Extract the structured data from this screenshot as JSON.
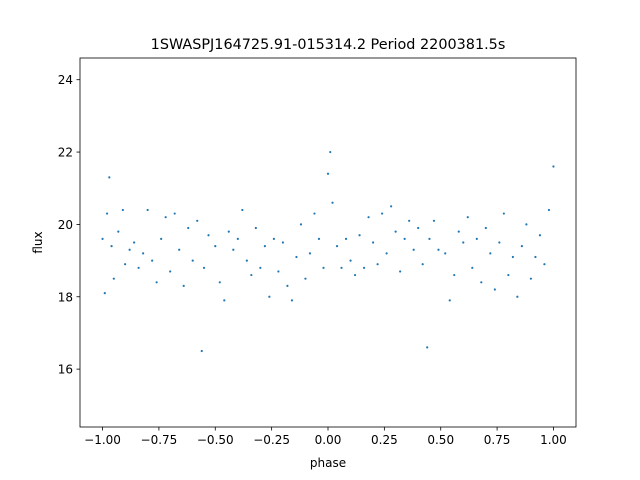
{
  "chart_data": {
    "type": "scatter",
    "title": "1SWASPJ164725.91-015314.2 Period 2200381.5s",
    "xlabel": "phase",
    "ylabel": "flux",
    "xlim": [
      -1.1,
      1.1
    ],
    "ylim": [
      14.4,
      24.6
    ],
    "x_ticks": [
      -1.0,
      -0.75,
      -0.5,
      -0.25,
      0.0,
      0.25,
      0.5,
      0.75,
      1.0
    ],
    "x_tick_labels": [
      "−1.00",
      "−0.75",
      "−0.50",
      "−0.25",
      "0.00",
      "0.25",
      "0.50",
      "0.75",
      "1.00"
    ],
    "y_ticks": [
      16,
      18,
      20,
      22,
      24
    ],
    "y_tick_labels": [
      "16",
      "18",
      "20",
      "22",
      "24"
    ],
    "grid": false,
    "legend": "none",
    "marker_color": "#1f77b4",
    "series": [
      {
        "points": [
          [
            -1.0,
            19.6
          ],
          [
            -0.99,
            18.1
          ],
          [
            -0.98,
            20.3
          ],
          [
            -0.97,
            21.3
          ],
          [
            -0.96,
            19.4
          ],
          [
            -0.95,
            18.5
          ],
          [
            -0.93,
            19.8
          ],
          [
            -0.91,
            20.4
          ],
          [
            -0.9,
            18.9
          ],
          [
            -0.88,
            19.3
          ],
          [
            -0.86,
            19.5
          ],
          [
            -0.84,
            18.8
          ],
          [
            -0.82,
            19.2
          ],
          [
            -0.8,
            20.4
          ],
          [
            -0.78,
            19.0
          ],
          [
            -0.76,
            18.4
          ],
          [
            -0.74,
            19.6
          ],
          [
            -0.72,
            20.2
          ],
          [
            -0.7,
            18.7
          ],
          [
            -0.68,
            20.3
          ],
          [
            -0.66,
            19.3
          ],
          [
            -0.64,
            18.3
          ],
          [
            -0.62,
            19.9
          ],
          [
            -0.6,
            19.0
          ],
          [
            -0.58,
            20.1
          ],
          [
            -0.56,
            16.5
          ],
          [
            -0.55,
            18.8
          ],
          [
            -0.53,
            19.7
          ],
          [
            -0.5,
            19.4
          ],
          [
            -0.48,
            18.4
          ],
          [
            -0.46,
            17.9
          ],
          [
            -0.44,
            19.8
          ],
          [
            -0.42,
            19.3
          ],
          [
            -0.4,
            19.6
          ],
          [
            -0.38,
            20.4
          ],
          [
            -0.36,
            19.0
          ],
          [
            -0.34,
            18.6
          ],
          [
            -0.32,
            19.9
          ],
          [
            -0.3,
            18.8
          ],
          [
            -0.28,
            19.4
          ],
          [
            -0.26,
            18.0
          ],
          [
            -0.24,
            19.6
          ],
          [
            -0.22,
            18.7
          ],
          [
            -0.2,
            19.5
          ],
          [
            -0.18,
            18.3
          ],
          [
            -0.16,
            17.9
          ],
          [
            -0.14,
            19.1
          ],
          [
            -0.12,
            20.0
          ],
          [
            -0.1,
            18.5
          ],
          [
            -0.08,
            19.2
          ],
          [
            -0.06,
            20.3
          ],
          [
            -0.04,
            19.6
          ],
          [
            -0.02,
            18.8
          ],
          [
            0.0,
            21.4
          ],
          [
            0.01,
            22.0
          ],
          [
            0.02,
            20.6
          ],
          [
            0.04,
            19.4
          ],
          [
            0.06,
            18.8
          ],
          [
            0.08,
            19.6
          ],
          [
            0.1,
            19.0
          ],
          [
            0.12,
            18.6
          ],
          [
            0.14,
            19.7
          ],
          [
            0.16,
            18.8
          ],
          [
            0.18,
            20.2
          ],
          [
            0.2,
            19.5
          ],
          [
            0.22,
            18.9
          ],
          [
            0.24,
            20.3
          ],
          [
            0.26,
            19.2
          ],
          [
            0.28,
            20.5
          ],
          [
            0.3,
            19.8
          ],
          [
            0.32,
            18.7
          ],
          [
            0.34,
            19.6
          ],
          [
            0.36,
            20.1
          ],
          [
            0.38,
            19.3
          ],
          [
            0.4,
            19.9
          ],
          [
            0.42,
            18.9
          ],
          [
            0.44,
            16.6
          ],
          [
            0.45,
            19.6
          ],
          [
            0.47,
            20.1
          ],
          [
            0.49,
            19.3
          ],
          [
            0.52,
            19.2
          ],
          [
            0.54,
            17.9
          ],
          [
            0.56,
            18.6
          ],
          [
            0.58,
            19.8
          ],
          [
            0.6,
            19.5
          ],
          [
            0.62,
            20.2
          ],
          [
            0.64,
            18.8
          ],
          [
            0.66,
            19.6
          ],
          [
            0.68,
            18.4
          ],
          [
            0.7,
            19.9
          ],
          [
            0.72,
            19.2
          ],
          [
            0.74,
            18.2
          ],
          [
            0.76,
            19.5
          ],
          [
            0.78,
            20.3
          ],
          [
            0.8,
            18.6
          ],
          [
            0.82,
            19.1
          ],
          [
            0.84,
            18.0
          ],
          [
            0.86,
            19.4
          ],
          [
            0.88,
            20.0
          ],
          [
            0.9,
            18.5
          ],
          [
            0.92,
            19.1
          ],
          [
            0.94,
            19.7
          ],
          [
            0.96,
            18.9
          ],
          [
            0.98,
            20.4
          ],
          [
            1.0,
            21.6
          ]
        ]
      }
    ]
  }
}
